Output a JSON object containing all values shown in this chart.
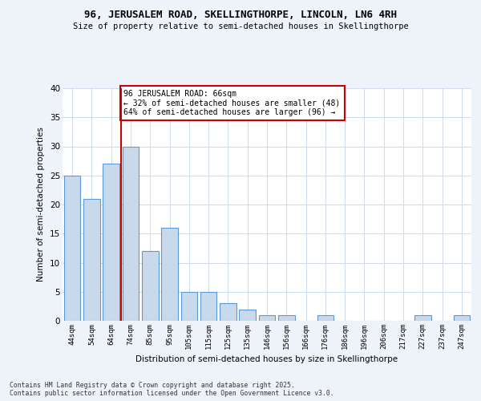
{
  "title": "96, JERUSALEM ROAD, SKELLINGTHORPE, LINCOLN, LN6 4RH",
  "subtitle": "Size of property relative to semi-detached houses in Skellingthorpe",
  "xlabel": "Distribution of semi-detached houses by size in Skellingthorpe",
  "ylabel": "Number of semi-detached properties",
  "categories": [
    "44sqm",
    "54sqm",
    "64sqm",
    "74sqm",
    "85sqm",
    "95sqm",
    "105sqm",
    "115sqm",
    "125sqm",
    "135sqm",
    "146sqm",
    "156sqm",
    "166sqm",
    "176sqm",
    "186sqm",
    "196sqm",
    "206sqm",
    "217sqm",
    "227sqm",
    "237sqm",
    "247sqm"
  ],
  "values": [
    25,
    21,
    27,
    30,
    12,
    16,
    5,
    5,
    3,
    2,
    1,
    1,
    0,
    1,
    0,
    0,
    0,
    0,
    1,
    0,
    1
  ],
  "bar_color": "#c9d9ec",
  "bar_edge_color": "#5b9bd5",
  "vline_x_idx": 2,
  "vline_color": "#cc0000",
  "annotation_text": "96 JERUSALEM ROAD: 66sqm\n← 32% of semi-detached houses are smaller (48)\n64% of semi-detached houses are larger (96) →",
  "annotation_box_color": "#ffffff",
  "annotation_box_edge": "#cc0000",
  "ylim": [
    0,
    40
  ],
  "yticks": [
    0,
    5,
    10,
    15,
    20,
    25,
    30,
    35,
    40
  ],
  "footer": "Contains HM Land Registry data © Crown copyright and database right 2025.\nContains public sector information licensed under the Open Government Licence v3.0.",
  "bg_color": "#eef2f9",
  "plot_bg_color": "#ffffff",
  "grid_color": "#c8d4e8"
}
